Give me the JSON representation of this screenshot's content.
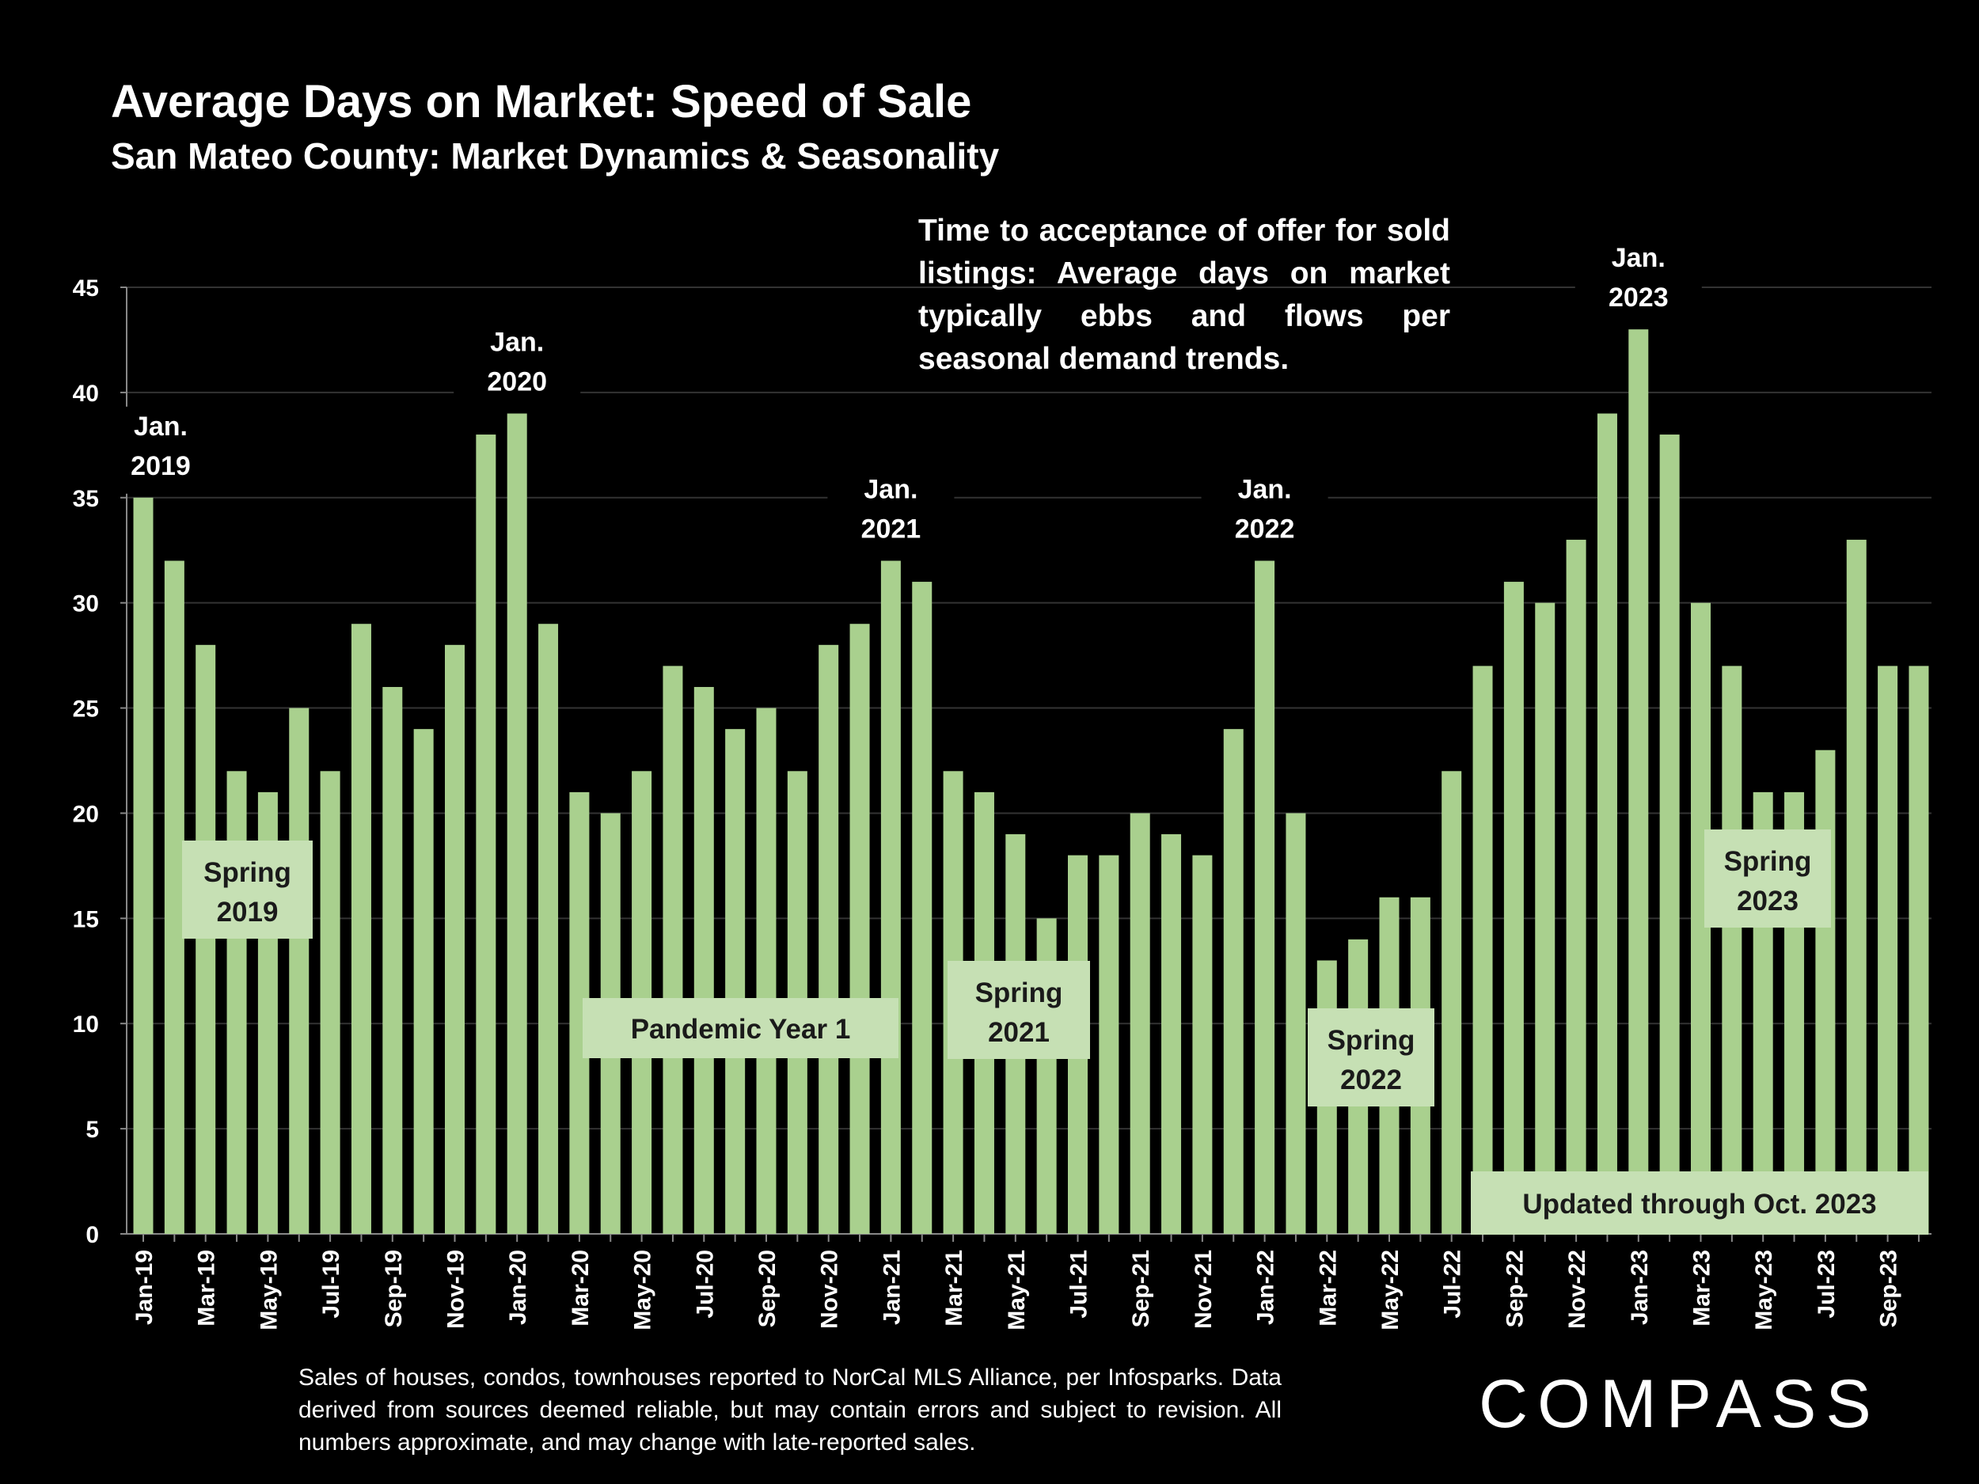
{
  "title": "Average Days on Market:  Speed of Sale",
  "subtitle": "San Mateo County: Market Dynamics & Seasonality",
  "note": "Time to acceptance of offer for sold listings: Average days on market typically ebbs and flows per seasonal demand trends.",
  "footnote": "Sales of houses, condos, townhouses reported to NorCal MLS Alliance, per Infosparks. Data derived from sources deemed reliable, but may contain errors and subject to revision. All numbers approximate, and may change with late-reported sales.",
  "logo": "COMPASS",
  "colors": {
    "bar": "#a9d08e",
    "box": "#c6e0b4",
    "background": "#000000",
    "text": "#ffffff",
    "grid": "#333333"
  },
  "chart_data": {
    "type": "bar",
    "categories": [
      "Jan-19",
      "Feb-19",
      "Mar-19",
      "Apr-19",
      "May-19",
      "Jun-19",
      "Jul-19",
      "Aug-19",
      "Sep-19",
      "Oct-19",
      "Nov-19",
      "Dec-19",
      "Jan-20",
      "Feb-20",
      "Mar-20",
      "Apr-20",
      "May-20",
      "Jun-20",
      "Jul-20",
      "Aug-20",
      "Sep-20",
      "Oct-20",
      "Nov-20",
      "Dec-20",
      "Jan-21",
      "Feb-21",
      "Mar-21",
      "Apr-21",
      "May-21",
      "Jun-21",
      "Jul-21",
      "Aug-21",
      "Sep-21",
      "Oct-21",
      "Nov-21",
      "Dec-21",
      "Jan-22",
      "Feb-22",
      "Mar-22",
      "Apr-22",
      "May-22",
      "Jun-22",
      "Jul-22",
      "Aug-22",
      "Sep-22",
      "Oct-22",
      "Nov-22",
      "Dec-22",
      "Jan-23",
      "Feb-23",
      "Mar-23",
      "Apr-23",
      "May-23",
      "Jun-23",
      "Jul-23",
      "Aug-23",
      "Sep-23",
      "Oct-23"
    ],
    "tick_labels": [
      "Jan-19",
      "Mar-19",
      "May-19",
      "Jul-19",
      "Sep-19",
      "Nov-19",
      "Jan-20",
      "Mar-20",
      "May-20",
      "Jul-20",
      "Sep-20",
      "Nov-20",
      "Jan-21",
      "Mar-21",
      "May-21",
      "Jul-21",
      "Sep-21",
      "Nov-21",
      "Jan-22",
      "Mar-22",
      "May-22",
      "Jul-22",
      "Sep-22",
      "Nov-22",
      "Jan-23",
      "Mar-23",
      "May-23",
      "Jul-23",
      "Sep-23"
    ],
    "values": [
      35,
      32,
      28,
      22,
      21,
      25,
      22,
      29,
      26,
      24,
      28,
      38,
      39,
      29,
      21,
      20,
      22,
      27,
      26,
      24,
      25,
      22,
      28,
      29,
      32,
      31,
      22,
      21,
      19,
      15,
      18,
      18,
      20,
      19,
      18,
      24,
      32,
      20,
      13,
      14,
      16,
      16,
      22,
      27,
      31,
      30,
      33,
      39,
      43,
      38,
      30,
      27,
      21,
      21,
      23,
      33,
      27,
      27
    ],
    "ylim": [
      0,
      45
    ],
    "yticks": [
      0,
      5,
      10,
      15,
      20,
      25,
      30,
      35,
      40,
      45
    ],
    "grid": true,
    "annotations": [
      {
        "category": "Jan-19",
        "line1": "Jan.",
        "line2": "2019"
      },
      {
        "category": "Jan-20",
        "line1": "Jan.",
        "line2": "2020"
      },
      {
        "category": "Jan-21",
        "line1": "Jan.",
        "line2": "2021"
      },
      {
        "category": "Jan-22",
        "line1": "Jan.",
        "line2": "2022"
      },
      {
        "category": "Jan-23",
        "line1": "Jan.",
        "line2": "2023"
      }
    ],
    "boxes": [
      {
        "line1": "Spring",
        "line2": "2019"
      },
      {
        "line1": "Pandemic Year 1",
        "line2": ""
      },
      {
        "line1": "Spring",
        "line2": "2021"
      },
      {
        "line1": "Spring",
        "line2": "2022"
      },
      {
        "line1": "Spring",
        "line2": "2023"
      },
      {
        "line1": "Updated through Oct. 2023",
        "line2": ""
      }
    ]
  }
}
